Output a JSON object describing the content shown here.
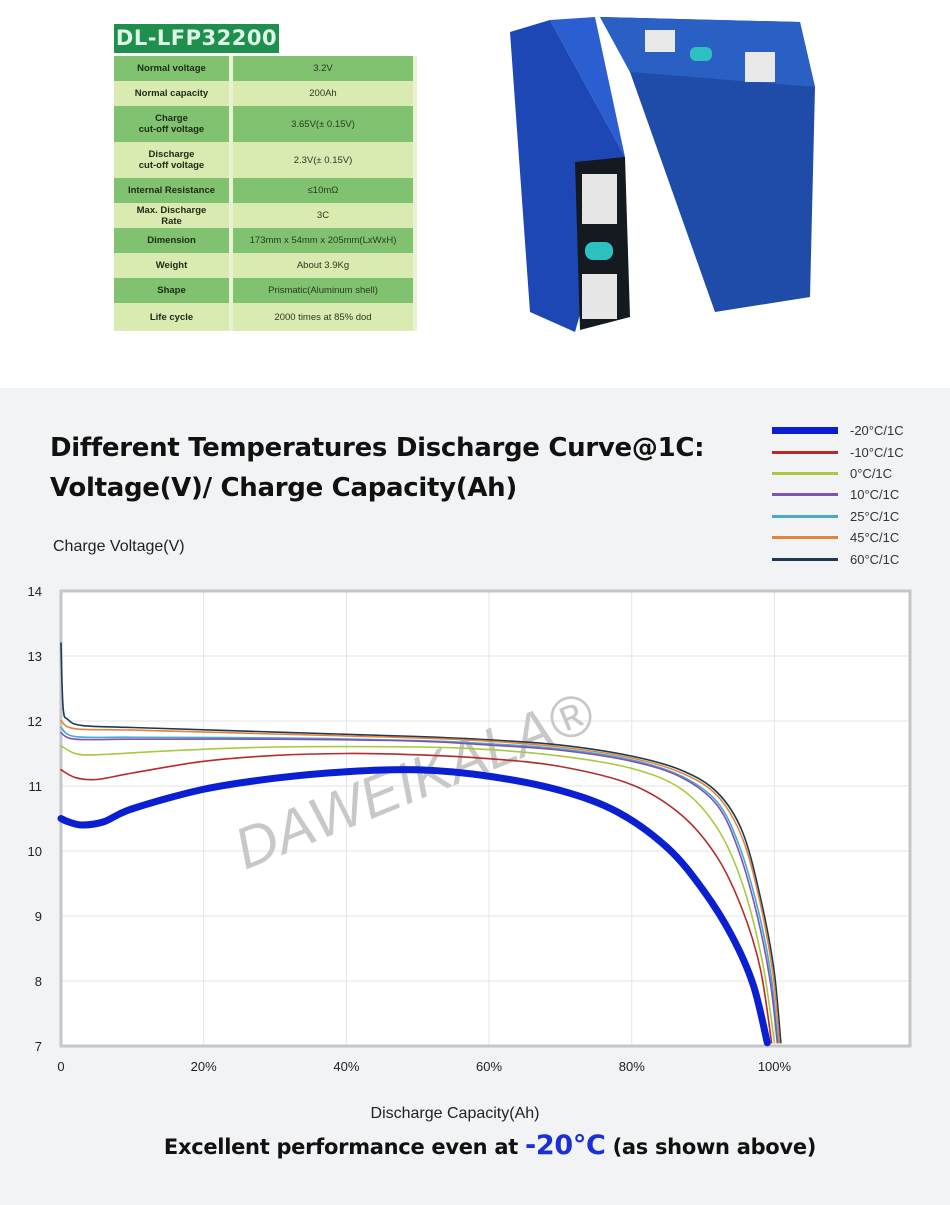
{
  "product": {
    "model": "DL-LFP32200",
    "specs": [
      {
        "label": "Normal voltage",
        "value": "3.2V"
      },
      {
        "label": "Normal capacity",
        "value": "200Ah"
      },
      {
        "label": "Charge\ncut-off voltage",
        "value": "3.65V(± 0.15V)"
      },
      {
        "label": "Discharge\ncut-off voltage",
        "value": "2.3V(± 0.15V)"
      },
      {
        "label": "Internal Resistance",
        "value": "≤10mΩ"
      },
      {
        "label": "Max. Discharge\nRate",
        "value": "3C"
      },
      {
        "label": "Dimension",
        "value": "173mm x 54mm x 205mm(LxWxH)"
      },
      {
        "label": "Weight",
        "value": "About 3.9Kg"
      },
      {
        "label": "Shape",
        "value": "Prismatic(Aluminum shell)"
      },
      {
        "label": "Life cycle",
        "value": "2000 times at 85% dod"
      }
    ]
  },
  "chart_data": {
    "type": "line",
    "title": "Different Temperatures Discharge Curve@1C:\nVoltage(V)/ Charge Capacity(Ah)",
    "ylabel": "Charge Voltage(V)",
    "xlabel": "Discharge Capacity(Ah)",
    "xlim": [
      0,
      119
    ],
    "ylim": [
      7,
      14
    ],
    "xticks": [
      "0",
      "20%",
      "40%",
      "60%",
      "80%",
      "100%"
    ],
    "xtick_values": [
      0,
      20,
      40,
      60,
      80,
      100
    ],
    "yticks": [
      7,
      8,
      9,
      10,
      11,
      12,
      13,
      14
    ],
    "grid": true,
    "legend_position": "top-right",
    "watermark": "DAWEIKALA®",
    "series": [
      {
        "name": "-20°C/1C",
        "color": "#0b1fd2",
        "points": [
          [
            0,
            10.5
          ],
          [
            1,
            10.45
          ],
          [
            3,
            10.4
          ],
          [
            6,
            10.45
          ],
          [
            10,
            10.65
          ],
          [
            20,
            10.95
          ],
          [
            30,
            11.12
          ],
          [
            40,
            11.22
          ],
          [
            50,
            11.25
          ],
          [
            60,
            11.15
          ],
          [
            70,
            10.93
          ],
          [
            78,
            10.6
          ],
          [
            85,
            10.05
          ],
          [
            90,
            9.4
          ],
          [
            94,
            8.7
          ],
          [
            97,
            7.95
          ],
          [
            99,
            7.05
          ]
        ]
      },
      {
        "name": "-10°C/1C",
        "color": "#b52a2a",
        "points": [
          [
            0,
            11.25
          ],
          [
            2,
            11.13
          ],
          [
            5,
            11.1
          ],
          [
            10,
            11.2
          ],
          [
            20,
            11.38
          ],
          [
            30,
            11.47
          ],
          [
            40,
            11.5
          ],
          [
            50,
            11.48
          ],
          [
            60,
            11.42
          ],
          [
            70,
            11.3
          ],
          [
            80,
            11.02
          ],
          [
            87,
            10.55
          ],
          [
            92,
            9.9
          ],
          [
            95.5,
            9.1
          ],
          [
            98,
            8.2
          ],
          [
            99.6,
            7.05
          ]
        ]
      },
      {
        "name": "0°C/1C",
        "color": "#a9c93e",
        "points": [
          [
            0,
            11.62
          ],
          [
            2,
            11.5
          ],
          [
            5,
            11.48
          ],
          [
            15,
            11.54
          ],
          [
            30,
            11.6
          ],
          [
            50,
            11.6
          ],
          [
            60,
            11.56
          ],
          [
            70,
            11.46
          ],
          [
            80,
            11.27
          ],
          [
            87,
            10.95
          ],
          [
            92,
            10.35
          ],
          [
            95.5,
            9.5
          ],
          [
            98.3,
            8.3
          ],
          [
            100,
            7.05
          ]
        ]
      },
      {
        "name": "10°C/1C",
        "color": "#7b55b5",
        "points": [
          [
            0,
            11.82
          ],
          [
            2,
            11.72
          ],
          [
            10,
            11.72
          ],
          [
            30,
            11.72
          ],
          [
            50,
            11.69
          ],
          [
            60,
            11.63
          ],
          [
            70,
            11.55
          ],
          [
            80,
            11.38
          ],
          [
            87,
            11.13
          ],
          [
            92,
            10.7
          ],
          [
            95,
            10.0
          ],
          [
            97.6,
            9.0
          ],
          [
            99.4,
            8.0
          ],
          [
            100.4,
            7.05
          ]
        ]
      },
      {
        "name": "25°C/1C",
        "color": "#4aa9c9",
        "points": [
          [
            0,
            11.9
          ],
          [
            2,
            11.76
          ],
          [
            10,
            11.75
          ],
          [
            30,
            11.74
          ],
          [
            50,
            11.7
          ],
          [
            60,
            11.65
          ],
          [
            70,
            11.57
          ],
          [
            80,
            11.4
          ],
          [
            87,
            11.15
          ],
          [
            92,
            10.75
          ],
          [
            95,
            10.1
          ],
          [
            97.7,
            9.1
          ],
          [
            99.5,
            8.1
          ],
          [
            100.5,
            7.05
          ]
        ]
      },
      {
        "name": "45°C/1C",
        "color": "#e2843a",
        "points": [
          [
            0,
            12.0
          ],
          [
            2,
            11.88
          ],
          [
            10,
            11.86
          ],
          [
            30,
            11.8
          ],
          [
            50,
            11.74
          ],
          [
            60,
            11.69
          ],
          [
            70,
            11.6
          ],
          [
            80,
            11.43
          ],
          [
            87,
            11.2
          ],
          [
            92,
            10.85
          ],
          [
            95.5,
            10.2
          ],
          [
            98,
            9.2
          ],
          [
            99.8,
            8.1
          ],
          [
            100.7,
            7.05
          ]
        ]
      },
      {
        "name": "60°C/1C",
        "color": "#1d3954",
        "points": [
          [
            0,
            13.2
          ],
          [
            0.3,
            12.2
          ],
          [
            1,
            12.02
          ],
          [
            3,
            11.93
          ],
          [
            10,
            11.9
          ],
          [
            30,
            11.83
          ],
          [
            50,
            11.76
          ],
          [
            60,
            11.71
          ],
          [
            70,
            11.63
          ],
          [
            80,
            11.46
          ],
          [
            87,
            11.24
          ],
          [
            92,
            10.9
          ],
          [
            95.5,
            10.3
          ],
          [
            98,
            9.3
          ],
          [
            99.9,
            8.2
          ],
          [
            100.9,
            7.05
          ]
        ]
      }
    ]
  },
  "footer": {
    "prefix": "Excellent performance even at ",
    "highlight": "-20°C",
    "suffix": " (as shown above)"
  }
}
